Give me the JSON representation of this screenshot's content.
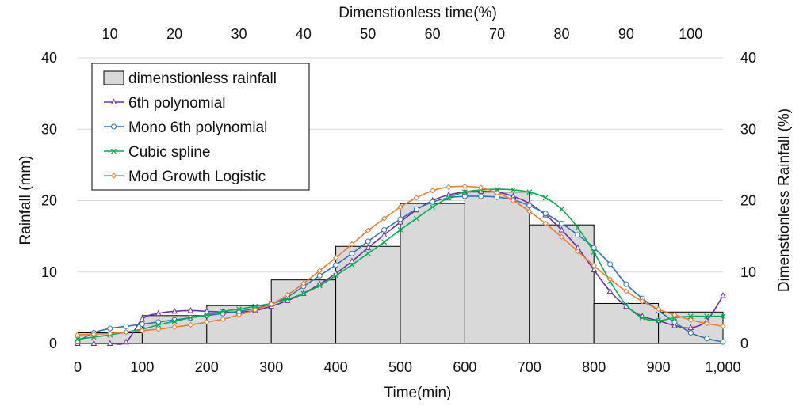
{
  "chart_data": {
    "type": "bar+line",
    "title": "",
    "xlabel": "Time(min)",
    "ylabel": "Rainfall (mm)",
    "x2label": "Dimenstionless time(%)",
    "y2label": "Dimenstionless Rainfall (%)",
    "xlim": [
      0,
      1000
    ],
    "ylim": [
      0,
      40
    ],
    "x2lim": [
      5,
      105
    ],
    "y2lim": [
      0,
      40
    ],
    "x_ticks": [
      "0",
      "100",
      "200",
      "300",
      "400",
      "500",
      "600",
      "700",
      "800",
      "900",
      "1,000"
    ],
    "y_ticks": [
      "0",
      "10",
      "20",
      "30",
      "40"
    ],
    "x2_ticks": [
      "10",
      "20",
      "30",
      "40",
      "50",
      "60",
      "70",
      "80",
      "90",
      "100"
    ],
    "y2_ticks": [
      "0",
      "10",
      "20",
      "30",
      "40"
    ],
    "grid": "horizontal",
    "legend_position": "top-left",
    "bars": {
      "name": "dimenstionless rainfall",
      "color": "#d9d9d9",
      "edge": "#000000",
      "x_start": [
        0,
        100,
        200,
        300,
        400,
        500,
        600,
        700,
        800,
        900
      ],
      "x_end": [
        100,
        200,
        300,
        400,
        500,
        600,
        700,
        800,
        900,
        1000
      ],
      "values": [
        1.5,
        3.9,
        5.3,
        8.9,
        13.6,
        19.6,
        21.2,
        16.6,
        5.6,
        4.4
      ]
    },
    "series": [
      {
        "name": "6th polynomial",
        "color": "#7030a0",
        "marker": "triangle",
        "x": [
          0,
          25,
          50,
          75,
          100,
          125,
          150,
          175,
          200,
          225,
          250,
          275,
          300,
          325,
          350,
          375,
          400,
          425,
          450,
          475,
          500,
          525,
          550,
          575,
          600,
          625,
          650,
          675,
          700,
          725,
          750,
          775,
          800,
          825,
          850,
          875,
          900,
          925,
          950,
          975,
          1000
        ],
        "y": [
          0,
          0,
          0,
          0.2,
          3.4,
          4.2,
          4.5,
          4.6,
          4.5,
          4.4,
          4.4,
          4.6,
          5.2,
          6.0,
          7.0,
          8.3,
          9.8,
          11.5,
          13.4,
          15.2,
          17.0,
          18.7,
          20.0,
          20.8,
          21.2,
          21.3,
          21.2,
          20.6,
          19.6,
          18.0,
          15.9,
          13.4,
          10.3,
          7.3,
          5.2,
          3.8,
          3.2,
          2.5,
          2.2,
          3.2,
          6.7
        ]
      },
      {
        "name": "Mono 6th polynomial",
        "color": "#2e75b6",
        "marker": "circle",
        "x": [
          0,
          25,
          50,
          75,
          100,
          125,
          150,
          175,
          200,
          225,
          250,
          275,
          300,
          325,
          350,
          375,
          400,
          425,
          450,
          475,
          500,
          525,
          550,
          575,
          600,
          625,
          650,
          675,
          700,
          725,
          750,
          775,
          800,
          825,
          850,
          875,
          900,
          925,
          950,
          975,
          1000
        ],
        "y": [
          0.3,
          1.5,
          2.1,
          2.4,
          2.7,
          3.0,
          3.3,
          3.6,
          3.9,
          4.2,
          4.5,
          4.9,
          5.5,
          6.5,
          8.0,
          9.5,
          11.0,
          12.6,
          14.3,
          15.9,
          17.4,
          18.8,
          19.8,
          20.4,
          20.6,
          20.6,
          20.5,
          20.1,
          19.3,
          18.2,
          16.8,
          15.2,
          13.4,
          11.1,
          8.3,
          6.3,
          4.6,
          3.0,
          1.5,
          0.7,
          0.2
        ]
      },
      {
        "name": "Cubic spline",
        "color": "#00b050",
        "marker": "x",
        "x": [
          0,
          25,
          50,
          75,
          100,
          125,
          150,
          175,
          200,
          225,
          250,
          275,
          300,
          325,
          350,
          375,
          400,
          425,
          450,
          475,
          500,
          525,
          550,
          575,
          600,
          625,
          650,
          675,
          700,
          725,
          750,
          775,
          800,
          825,
          850,
          875,
          900,
          925,
          950,
          975,
          1000
        ],
        "y": [
          0.6,
          0.9,
          1.2,
          1.6,
          2.0,
          2.6,
          3.1,
          3.6,
          4.0,
          4.5,
          4.8,
          5.2,
          5.6,
          6.2,
          7.0,
          8.1,
          9.5,
          11.0,
          12.6,
          14.2,
          15.9,
          17.5,
          19.1,
          20.4,
          21.2,
          21.5,
          21.6,
          21.5,
          21.2,
          20.4,
          18.8,
          16.2,
          12.8,
          8.7,
          5.4,
          3.6,
          3.2,
          3.6,
          3.8,
          3.8,
          3.8
        ]
      },
      {
        "name": "Mod Growth Logistic",
        "color": "#ed7d31",
        "marker": "diamond",
        "x": [
          0,
          25,
          50,
          75,
          100,
          125,
          150,
          175,
          200,
          225,
          250,
          275,
          300,
          325,
          350,
          375,
          400,
          425,
          450,
          475,
          500,
          525,
          550,
          575,
          600,
          625,
          650,
          675,
          700,
          725,
          750,
          775,
          800,
          825,
          850,
          875,
          900,
          925,
          950,
          975,
          1000
        ],
        "y": [
          1.2,
          1.3,
          1.4,
          1.6,
          1.8,
          2.0,
          2.3,
          2.6,
          3.0,
          3.4,
          4.0,
          4.7,
          5.5,
          6.8,
          8.4,
          10.2,
          12.0,
          13.9,
          15.8,
          17.5,
          19.1,
          20.4,
          21.4,
          21.9,
          22.0,
          21.8,
          21.1,
          20.0,
          18.5,
          16.8,
          14.9,
          12.9,
          10.9,
          9.0,
          7.3,
          5.9,
          4.8,
          4.0,
          3.3,
          2.8,
          2.4
        ]
      }
    ]
  },
  "colors": {
    "grid": "#d9d9d9",
    "legend_border": "#000000"
  }
}
